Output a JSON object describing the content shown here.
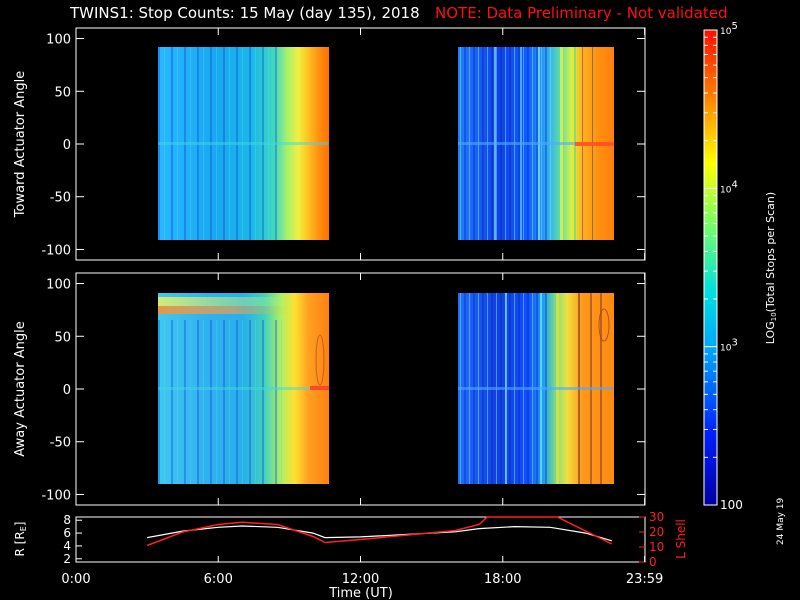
{
  "title": "TWINS1: Stop Counts: 15 May (day 135), 2018",
  "note": "NOTE: Data Preliminary - Not validated",
  "stamp": "24 May 19",
  "colors": {
    "background": "#000000",
    "axes": "#ffffff",
    "note": "#ff1010",
    "r_line": "#ffffff",
    "lshell_line": "#ff2020"
  },
  "chart_data": [
    {
      "type": "heatmap",
      "panel": "toward",
      "ylabel": "Toward Actuator Angle",
      "xlim": [
        "0:00",
        "23:59"
      ],
      "ylim": [
        -110,
        110
      ],
      "yticks": [
        "100",
        "50",
        "0",
        "-50",
        "-100"
      ],
      "data_blocks": [
        {
          "start_hour": 3.0,
          "end_hour": 10.45,
          "angle_range": [
            -90,
            90
          ]
        },
        {
          "start_hour": 16.0,
          "end_hour": 22.6,
          "angle_range": [
            -90,
            90
          ]
        }
      ],
      "color_scale": "log10 counts, 100 to 1e5"
    },
    {
      "type": "heatmap",
      "panel": "away",
      "ylabel": "Away Actuator Angle",
      "xlim": [
        "0:00",
        "23:59"
      ],
      "ylim": [
        -110,
        110
      ],
      "yticks": [
        "100",
        "50",
        "0",
        "-50",
        "-100"
      ],
      "data_blocks": [
        {
          "start_hour": 3.0,
          "end_hour": 10.45,
          "angle_range": [
            -90,
            90
          ]
        },
        {
          "start_hour": 16.0,
          "end_hour": 22.6,
          "angle_range": [
            -90,
            90
          ]
        }
      ],
      "color_scale": "log10 counts, 100 to 1e5"
    },
    {
      "type": "line",
      "panel": "orbit",
      "xlabel": "Time (UT)",
      "xticks": [
        "0:00",
        "6:00",
        "12:00",
        "18:00",
        "23:59"
      ],
      "ylabel_left": "R [R",
      "ylabel_left_sub": "E",
      "ylabel_left_end": "]",
      "yticks_left": [
        "8",
        "6",
        "4",
        "2"
      ],
      "ylim_left": [
        1.5,
        8.5
      ],
      "ylabel_right": "L Shell",
      "yticks_right": [
        "30",
        "20",
        "10",
        "0"
      ],
      "ylim_right": [
        0,
        30
      ],
      "series": [
        {
          "name": "R",
          "x": [
            3.0,
            4.5,
            6.0,
            7.0,
            8.5,
            10.0,
            10.5,
            12.0,
            14.0,
            16.0,
            17.0,
            18.5,
            20.0,
            21.5,
            22.6
          ],
          "y": [
            5.3,
            6.3,
            6.9,
            7.1,
            6.9,
            6.0,
            5.3,
            5.4,
            5.8,
            6.2,
            6.7,
            7.0,
            6.9,
            6.0,
            4.8
          ]
        },
        {
          "name": "L Shell",
          "x": [
            3.0,
            4.5,
            6.0,
            7.0,
            8.5,
            10.0,
            10.5,
            12.0,
            14.0,
            16.0,
            17.0,
            17.35,
            19.8,
            20.3,
            22.6
          ],
          "y": [
            11,
            20,
            25,
            26.5,
            25,
            17,
            13,
            15,
            18,
            21,
            25,
            30,
            30,
            30,
            12
          ]
        }
      ]
    },
    {
      "type": "heatmap",
      "panel": "colorbar",
      "ylabel": "LOG10(Total Stops per Scan)",
      "ylabel_pre": "LOG",
      "ylabel_sub": "10",
      "ylabel_post": "(Total Stops per Scan)",
      "ticks": [
        {
          "base": "10",
          "exp": "5",
          "value": 100000
        },
        {
          "base": "10",
          "exp": "4",
          "value": 10000
        },
        {
          "base": "10",
          "exp": "3",
          "value": 1000
        },
        {
          "base": "100",
          "exp": "",
          "value": 100
        }
      ],
      "range": [
        100,
        100000
      ],
      "scale": "log"
    }
  ]
}
